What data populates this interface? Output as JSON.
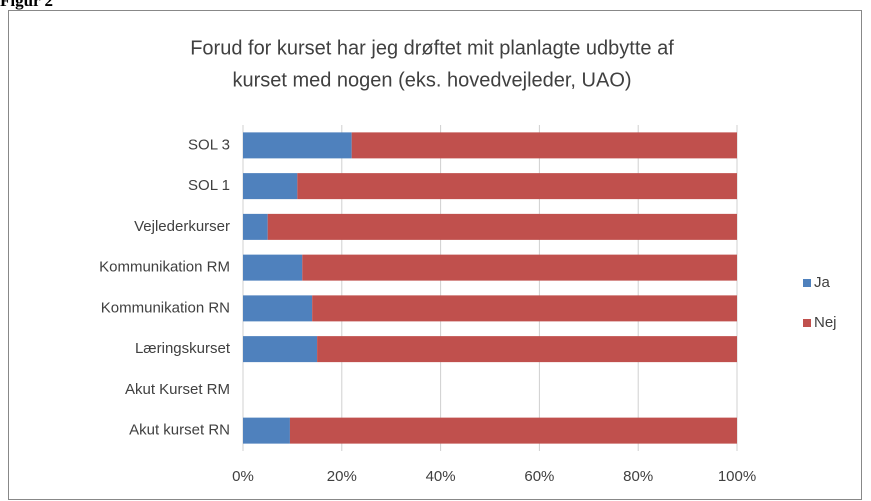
{
  "figure_label": "Figur 2",
  "chart_data": {
    "type": "stacked-bar-horizontal",
    "title": [
      "Forud for kurset har jeg  drøftet mit planlagte udbytte af",
      "kurset med nogen (eks. hovedvejleder, UAO)"
    ],
    "categories": [
      "SOL 3",
      "SOL 1",
      "Vejlederkurser",
      "Kommunikation RM",
      "Kommunikation RN",
      "Læringskurset",
      "Akut Kurset RM",
      "Akut kurset RN"
    ],
    "series": [
      {
        "name": "Ja",
        "color": "#4f81bd",
        "values": [
          22,
          11,
          5,
          12,
          14,
          15,
          null,
          9.5
        ]
      },
      {
        "name": "Nej",
        "color": "#c0504d",
        "values": [
          78,
          89,
          95,
          88,
          86,
          85,
          null,
          90.5
        ]
      }
    ],
    "xlim": [
      0,
      100
    ],
    "xticks": [
      {
        "value": 0,
        "label": "0%"
      },
      {
        "value": 20,
        "label": "20%"
      },
      {
        "value": 40,
        "label": "40%"
      },
      {
        "value": 60,
        "label": "60%"
      },
      {
        "value": 80,
        "label": "80%"
      },
      {
        "value": 100,
        "label": "100%"
      }
    ],
    "grid": true,
    "legend": "right"
  }
}
